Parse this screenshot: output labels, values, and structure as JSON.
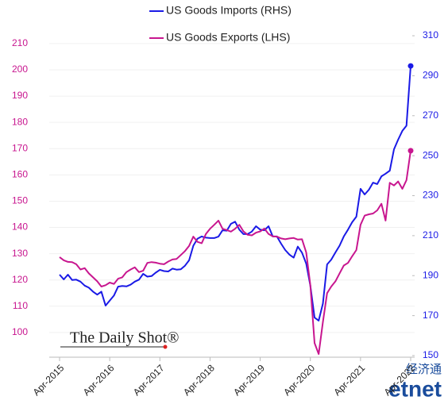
{
  "chart_data": {
    "type": "line",
    "categories": [
      "Apr-2015",
      null,
      null,
      null,
      null,
      null,
      null,
      null,
      null,
      null,
      null,
      null,
      "Apr-2016",
      null,
      null,
      null,
      null,
      null,
      null,
      null,
      null,
      null,
      null,
      null,
      "Apr-2017",
      null,
      null,
      null,
      null,
      null,
      null,
      null,
      null,
      null,
      null,
      null,
      "Apr-2018",
      null,
      null,
      null,
      null,
      null,
      null,
      null,
      null,
      null,
      null,
      null,
      "Apr-2019",
      null,
      null,
      null,
      null,
      null,
      null,
      null,
      null,
      null,
      null,
      null,
      "Apr-2020",
      null,
      null,
      null,
      null,
      null,
      null,
      null,
      null,
      null,
      null,
      null,
      "Apr-2021",
      null,
      null,
      null,
      null,
      null,
      null,
      null,
      null,
      null,
      null,
      null,
      "Apr-2022"
    ],
    "series": [
      {
        "name": "US Goods Imports (RHS)",
        "color": "#1a1ae6",
        "axis": "y2",
        "values": [
          190.5,
          188.1,
          190.5,
          187.8,
          188.0,
          187.0,
          185.0,
          184.0,
          182.0,
          180.5,
          182.0,
          175.0,
          177.5,
          180.0,
          184.5,
          184.8,
          184.6,
          185.5,
          187.0,
          188.0,
          190.9,
          189.5,
          189.8,
          191.5,
          192.9,
          192.3,
          192.1,
          193.5,
          193.0,
          193.2,
          195.0,
          197.7,
          205.0,
          208.5,
          209.6,
          209.0,
          208.8,
          208.8,
          209.5,
          212.7,
          212.5,
          215.9,
          217.0,
          213.0,
          210.8,
          210.8,
          212.0,
          214.7,
          213.0,
          212.7,
          214.7,
          209.6,
          209.6,
          206.0,
          202.8,
          200.5,
          199.0,
          204.5,
          201.5,
          196.0,
          185.0,
          169.0,
          167.5,
          176.0,
          195.6,
          198.0,
          201.6,
          205.0,
          209.6,
          213.0,
          216.7,
          219.5,
          233.4,
          230.6,
          233.0,
          236.5,
          235.8,
          239.7,
          241.0,
          242.5,
          253.2,
          258.0,
          262.4,
          265.0,
          294.9
        ]
      },
      {
        "name": "US Goods Exports (LHS)",
        "color": "#c8168f",
        "values": [
          128.7,
          127.5,
          126.9,
          126.8,
          126.0,
          124.0,
          124.5,
          122.5,
          121.0,
          119.5,
          117.5,
          118.0,
          119.0,
          118.5,
          120.5,
          121.0,
          123.0,
          124.0,
          124.8,
          123.0,
          123.5,
          126.5,
          126.8,
          126.6,
          126.2,
          126.0,
          127.0,
          127.8,
          128.0,
          129.5,
          131.0,
          133.0,
          136.5,
          134.5,
          134.0,
          137.5,
          139.5,
          141.0,
          142.6,
          139.5,
          139.0,
          138.4,
          139.5,
          141.0,
          138.5,
          137.2,
          137.0,
          138.0,
          138.5,
          139.6,
          137.5,
          136.6,
          136.5,
          135.8,
          135.5,
          135.8,
          136.0,
          135.4,
          135.5,
          130.5,
          118.0,
          96.0,
          91.8,
          104.0,
          115.0,
          117.5,
          119.5,
          122.5,
          125.5,
          126.5,
          129.0,
          131.4,
          141.0,
          144.5,
          145.0,
          145.3,
          146.5,
          149.0,
          142.6,
          157.0,
          156.0,
          157.5,
          154.7,
          158.0,
          169.2
        ]
      }
    ],
    "ylim": [
      90.6,
      214.5
    ],
    "yticks": [
      100,
      110,
      120,
      130,
      140,
      150,
      160,
      170,
      180,
      190,
      200,
      210
    ],
    "y2lim": [
      149.2,
      312
    ],
    "y2ticks": [
      150,
      170,
      190,
      210,
      230,
      250,
      270,
      290,
      310
    ],
    "grid": true,
    "annotations": [
      "The Daily Shot®",
      "经济通",
      "etnet"
    ]
  }
}
